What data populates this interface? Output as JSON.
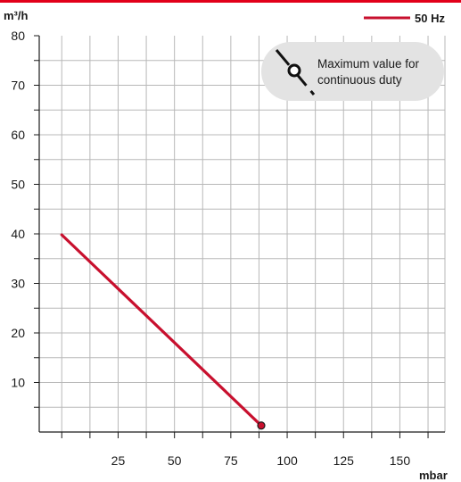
{
  "colors": {
    "accent": "#e2001a",
    "series": "#c8102e",
    "grid": "#b8b8b8",
    "note_bg": "#e3e3e3"
  },
  "legend": {
    "label": "50 Hz",
    "placement": "top-right"
  },
  "note": {
    "line1": "Maximum value for",
    "line2": "continuous duty",
    "icon": "max-continuous-duty-icon"
  },
  "chart_data": {
    "type": "line",
    "ylabel": "m³/h",
    "xlabel": "mbar",
    "ylim": [
      0,
      80
    ],
    "xlim": [
      -10,
      170
    ],
    "y_ticks": [
      10,
      20,
      30,
      40,
      50,
      60,
      70,
      80
    ],
    "y_tick_labels": [
      "10",
      "20",
      "30",
      "40",
      "50",
      "60",
      "70",
      "80"
    ],
    "x_ticks": [
      25,
      50,
      75,
      100,
      125,
      150
    ],
    "x_tick_labels": [
      "25",
      "50",
      "75",
      "100",
      "125",
      "150"
    ],
    "grid": true,
    "series": [
      {
        "name": "50 Hz",
        "x": [
          0,
          88.5
        ],
        "y": [
          39.8,
          1.3
        ],
        "end_marker": true
      }
    ]
  }
}
